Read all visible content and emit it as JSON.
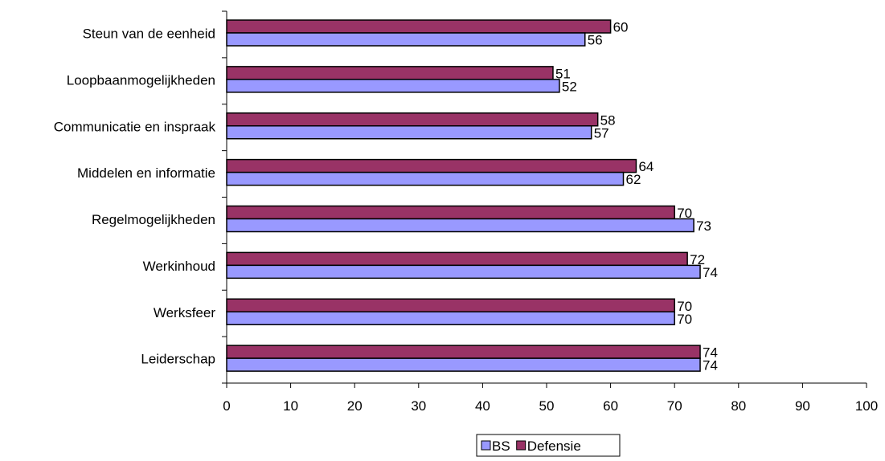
{
  "chart_data": {
    "type": "bar",
    "orientation": "horizontal",
    "categories": [
      "Steun van de eenheid",
      "Loopbaanmogelijkheden",
      "Communicatie en inspraak",
      "Middelen en informatie",
      "Regelmogelijkheden",
      "Werkinhoud",
      "Werksfeer",
      "Leiderschap"
    ],
    "series": [
      {
        "name": "BS",
        "color": "#9999ff",
        "values": [
          56,
          52,
          57,
          62,
          73,
          74,
          70,
          74
        ]
      },
      {
        "name": "Defensie",
        "color": "#993366",
        "values": [
          60,
          51,
          58,
          64,
          70,
          72,
          70,
          74
        ]
      }
    ],
    "xlim": [
      0,
      100
    ],
    "x_ticks": [
      0,
      10,
      20,
      30,
      40,
      50,
      60,
      70,
      80,
      90,
      100
    ],
    "data_labels": true,
    "grid": false,
    "legend_position": "bottom"
  }
}
